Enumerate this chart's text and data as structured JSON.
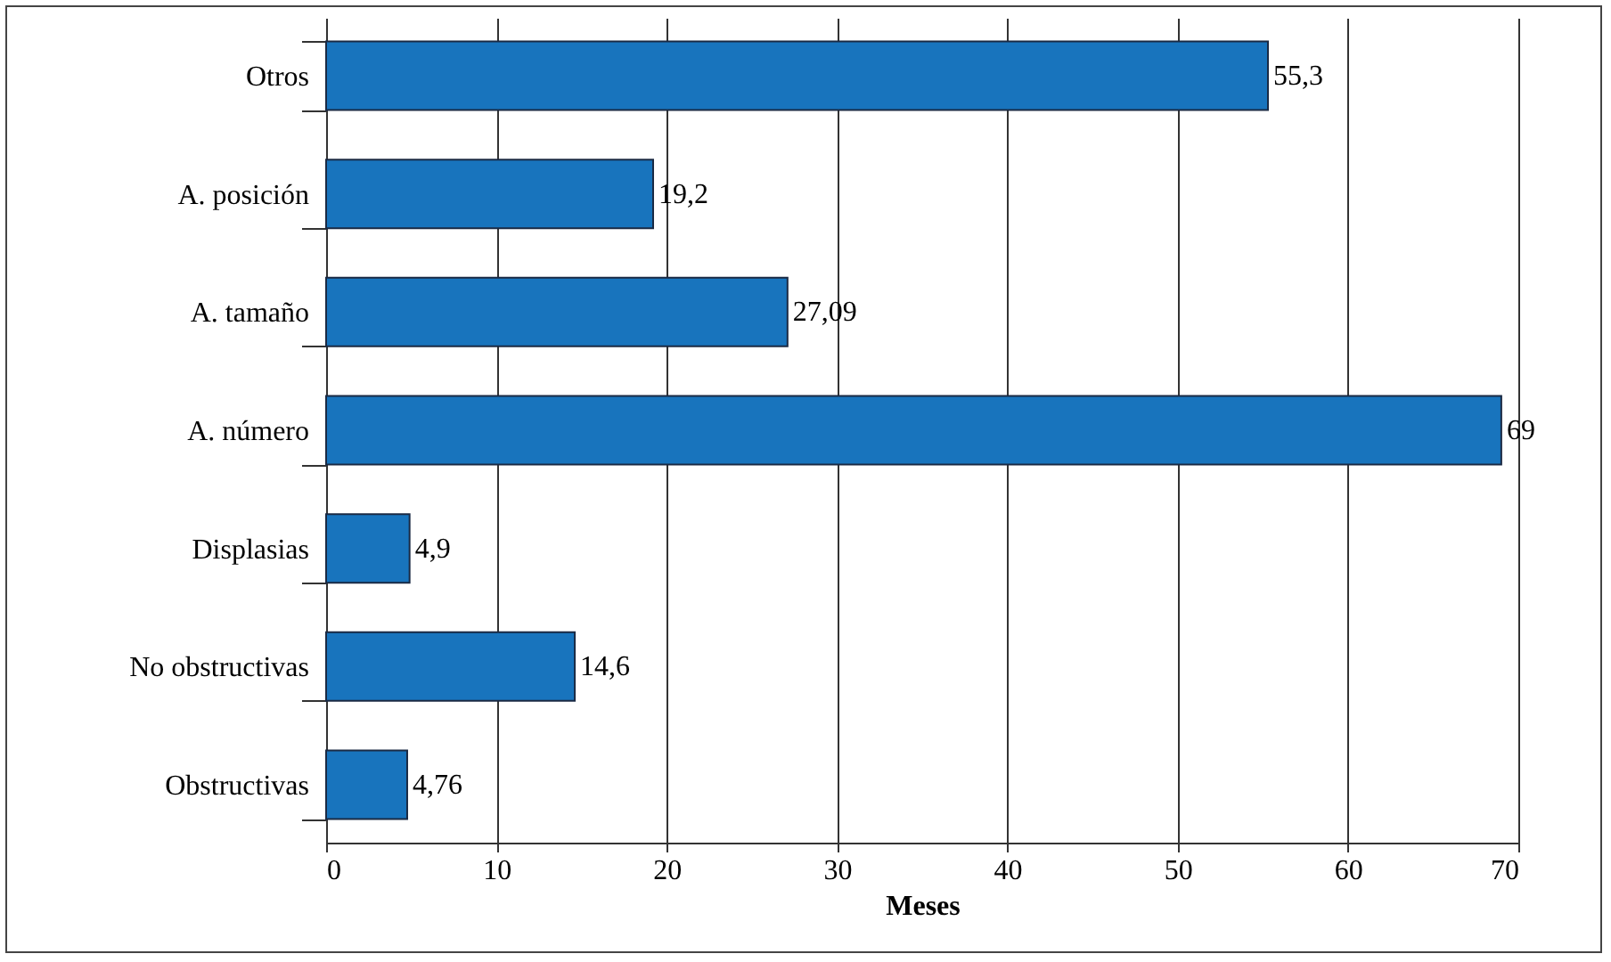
{
  "chart_data": {
    "type": "bar",
    "orientation": "horizontal",
    "xlabel": "Meses",
    "categories": [
      "Otros",
      "A. posición",
      "A. tamaño",
      "A. número",
      "Displasias",
      "No obstructivas",
      "Obstructivas"
    ],
    "values": [
      55.3,
      19.2,
      27.09,
      69,
      4.9,
      14.6,
      4.76
    ],
    "value_labels": [
      "55,3",
      "19,2",
      "27,09",
      "69",
      "4,9",
      "14,6",
      "4,76"
    ],
    "color": "#1874bd",
    "xlim": [
      0,
      70
    ],
    "xticks": [
      0,
      10,
      20,
      30,
      40,
      50,
      60,
      70
    ],
    "grid": "x"
  }
}
